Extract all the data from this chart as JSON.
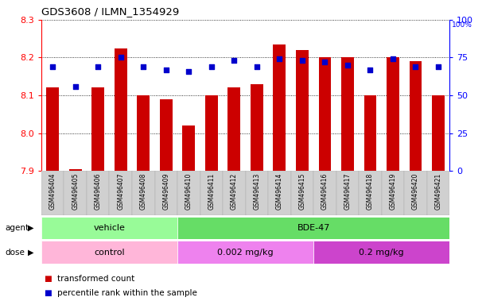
{
  "title": "GDS3608 / ILMN_1354929",
  "samples": [
    "GSM496404",
    "GSM496405",
    "GSM496406",
    "GSM496407",
    "GSM496408",
    "GSM496409",
    "GSM496410",
    "GSM496411",
    "GSM496412",
    "GSM496413",
    "GSM496414",
    "GSM496415",
    "GSM496416",
    "GSM496417",
    "GSM496418",
    "GSM496419",
    "GSM496420",
    "GSM496421"
  ],
  "transformed_counts": [
    8.12,
    7.905,
    8.12,
    8.225,
    8.1,
    8.09,
    8.02,
    8.1,
    8.12,
    8.13,
    8.235,
    8.22,
    8.2,
    8.2,
    8.1,
    8.2,
    8.19,
    8.1
  ],
  "percentile_ranks": [
    69,
    56,
    69,
    75,
    69,
    67,
    66,
    69,
    73,
    69,
    74,
    73,
    72,
    70,
    67,
    74,
    69,
    69
  ],
  "ymin": 7.9,
  "ymax": 8.3,
  "y2min": 0,
  "y2max": 100,
  "yticks": [
    7.9,
    8.0,
    8.1,
    8.2,
    8.3
  ],
  "y2ticks": [
    0,
    25,
    50,
    75,
    100
  ],
  "bar_color": "#CC0000",
  "dot_color": "#0000CC",
  "bar_bottom": 7.9,
  "bar_width": 0.55,
  "vehicle_color": "#98FB98",
  "bde47_color": "#66DD66",
  "control_color": "#FFB6D9",
  "dose1_color": "#EE82EE",
  "dose2_color": "#CC44CC",
  "xtick_bg": "#D3D3D3",
  "legend_red_label": "transformed count",
  "legend_blue_label": "percentile rank within the sample"
}
